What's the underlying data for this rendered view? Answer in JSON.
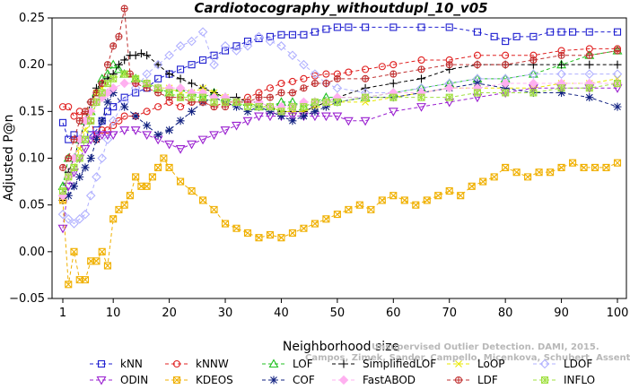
{
  "chart_data": {
    "type": "line",
    "title": "Cardiotocography_withoutdupl_10_v05",
    "xlabel": "Neighborhood size",
    "ylabel": "Adjusted P@n",
    "xlim": [
      1,
      100
    ],
    "ylim": [
      -0.05,
      0.25
    ],
    "xticks": [
      1,
      10,
      20,
      30,
      40,
      50,
      60,
      70,
      80,
      90,
      100
    ],
    "yticks": [
      -0.05,
      0.0,
      0.05,
      0.1,
      0.15,
      0.2,
      0.25
    ],
    "ytick_labels": [
      "−0.05",
      "0.00",
      "0.05",
      "0.10",
      "0.15",
      "0.20",
      "0.25"
    ],
    "grid": false,
    "legend_placement": "bottom",
    "watermark": [
      "Unsupervised Outlier Detection. DAMI, 2015.",
      "Campos, Zimek, Sander, Campello, Micenkova, Schubert, Assent, Houle"
    ],
    "series": [
      {
        "name": "kNN",
        "color": "#1f1fd0",
        "marker": "square",
        "x": [
          1,
          2,
          3,
          4,
          5,
          6,
          7,
          8,
          9,
          10,
          12,
          14,
          16,
          18,
          20,
          22,
          24,
          26,
          28,
          30,
          32,
          34,
          36,
          38,
          40,
          42,
          44,
          46,
          48,
          50,
          52,
          55,
          60,
          65,
          70,
          75,
          78,
          80,
          82,
          85,
          88,
          90,
          92,
          95,
          100
        ],
        "y": [
          0.138,
          0.12,
          0.125,
          0.12,
          0.12,
          0.125,
          0.13,
          0.14,
          0.15,
          0.155,
          0.165,
          0.17,
          0.175,
          0.185,
          0.19,
          0.195,
          0.2,
          0.205,
          0.21,
          0.215,
          0.22,
          0.225,
          0.228,
          0.23,
          0.232,
          0.232,
          0.232,
          0.235,
          0.238,
          0.24,
          0.24,
          0.24,
          0.24,
          0.24,
          0.24,
          0.235,
          0.23,
          0.225,
          0.23,
          0.23,
          0.235,
          0.235,
          0.235,
          0.235,
          0.235
        ]
      },
      {
        "name": "kNNW",
        "color": "#e02020",
        "marker": "circle",
        "x": [
          1,
          2,
          3,
          4,
          5,
          6,
          7,
          8,
          9,
          10,
          11,
          12,
          14,
          16,
          18,
          20,
          22,
          24,
          26,
          28,
          30,
          32,
          34,
          36,
          38,
          40,
          42,
          44,
          46,
          48,
          50,
          52,
          55,
          58,
          60,
          65,
          70,
          75,
          80,
          85,
          90,
          95,
          100
        ],
        "y": [
          0.155,
          0.155,
          0.145,
          0.15,
          0.145,
          0.14,
          0.12,
          0.13,
          0.13,
          0.135,
          0.14,
          0.145,
          0.145,
          0.15,
          0.155,
          0.16,
          0.155,
          0.16,
          0.16,
          0.155,
          0.16,
          0.16,
          0.165,
          0.17,
          0.175,
          0.18,
          0.182,
          0.185,
          0.188,
          0.19,
          0.19,
          0.192,
          0.195,
          0.198,
          0.2,
          0.205,
          0.205,
          0.21,
          0.21,
          0.21,
          0.215,
          0.217,
          0.217
        ]
      },
      {
        "name": "LOF",
        "color": "#20c020",
        "marker": "triangle",
        "x": [
          1,
          2,
          3,
          4,
          5,
          6,
          7,
          8,
          9,
          10,
          11,
          12,
          14,
          16,
          18,
          20,
          22,
          24,
          26,
          28,
          30,
          32,
          34,
          36,
          38,
          40,
          42,
          44,
          46,
          48,
          50,
          55,
          60,
          65,
          70,
          75,
          80,
          85,
          90,
          95,
          100
        ],
        "y": [
          0.07,
          0.1,
          0.1,
          0.12,
          0.14,
          0.15,
          0.17,
          0.185,
          0.19,
          0.2,
          0.195,
          0.19,
          0.185,
          0.18,
          0.175,
          0.17,
          0.175,
          0.17,
          0.165,
          0.17,
          0.165,
          0.16,
          0.16,
          0.155,
          0.155,
          0.16,
          0.16,
          0.155,
          0.16,
          0.165,
          0.165,
          0.165,
          0.17,
          0.175,
          0.18,
          0.185,
          0.185,
          0.19,
          0.2,
          0.21,
          0.215
        ]
      },
      {
        "name": "SimplifiedLOF",
        "color": "#000000",
        "marker": "plus",
        "x": [
          1,
          2,
          3,
          4,
          5,
          6,
          7,
          8,
          9,
          10,
          11,
          12,
          13,
          14,
          15,
          16,
          18,
          20,
          22,
          24,
          26,
          28,
          30,
          32,
          34,
          36,
          38,
          40,
          42,
          44,
          46,
          48,
          50,
          55,
          60,
          65,
          70,
          75,
          80,
          85,
          90,
          95,
          100
        ],
        "y": [
          0.055,
          0.085,
          0.1,
          0.12,
          0.14,
          0.16,
          0.175,
          0.18,
          0.185,
          0.19,
          0.2,
          0.205,
          0.21,
          0.21,
          0.212,
          0.21,
          0.2,
          0.19,
          0.185,
          0.18,
          0.175,
          0.17,
          0.165,
          0.165,
          0.16,
          0.16,
          0.155,
          0.15,
          0.15,
          0.15,
          0.155,
          0.16,
          0.165,
          0.175,
          0.18,
          0.185,
          0.195,
          0.2,
          0.2,
          0.2,
          0.2,
          0.2,
          0.2
        ]
      },
      {
        "name": "LoOP",
        "color": "#e8e800",
        "marker": "x",
        "x": [
          1,
          2,
          3,
          4,
          5,
          6,
          7,
          8,
          9,
          10,
          12,
          14,
          16,
          18,
          20,
          22,
          24,
          26,
          28,
          30,
          32,
          34,
          36,
          38,
          40,
          42,
          44,
          46,
          48,
          50,
          55,
          60,
          65,
          70,
          75,
          80,
          85,
          90,
          95,
          100
        ],
        "y": [
          0.06,
          0.08,
          0.09,
          0.11,
          0.13,
          0.15,
          0.17,
          0.175,
          0.18,
          0.185,
          0.19,
          0.185,
          0.18,
          0.175,
          0.175,
          0.17,
          0.17,
          0.175,
          0.17,
          0.165,
          0.16,
          0.16,
          0.155,
          0.155,
          0.15,
          0.15,
          0.15,
          0.155,
          0.155,
          0.16,
          0.16,
          0.165,
          0.17,
          0.175,
          0.175,
          0.175,
          0.175,
          0.18,
          0.18,
          0.185
        ]
      },
      {
        "name": "LDOF",
        "color": "#b0b0ff",
        "marker": "diamond",
        "x": [
          1,
          2,
          3,
          4,
          5,
          6,
          7,
          8,
          9,
          10,
          12,
          14,
          16,
          18,
          20,
          22,
          24,
          26,
          28,
          30,
          32,
          34,
          36,
          38,
          40,
          42,
          44,
          46,
          48,
          50,
          55,
          60,
          65,
          70,
          75,
          80,
          85,
          90,
          95,
          100
        ],
        "y": [
          0.04,
          0.035,
          0.03,
          0.035,
          0.04,
          0.06,
          0.08,
          0.1,
          0.12,
          0.14,
          0.16,
          0.175,
          0.19,
          0.2,
          0.21,
          0.22,
          0.225,
          0.235,
          0.2,
          0.22,
          0.215,
          0.22,
          0.23,
          0.225,
          0.22,
          0.21,
          0.2,
          0.19,
          0.18,
          0.175,
          0.17,
          0.17,
          0.175,
          0.18,
          0.185,
          0.185,
          0.19,
          0.19,
          0.19,
          0.19
        ]
      },
      {
        "name": "ODIN",
        "color": "#9a20d0",
        "marker": "tridown",
        "x": [
          1,
          2,
          3,
          4,
          5,
          6,
          7,
          8,
          9,
          10,
          12,
          14,
          16,
          18,
          20,
          22,
          24,
          26,
          28,
          30,
          32,
          34,
          36,
          38,
          40,
          42,
          44,
          46,
          48,
          50,
          52,
          55,
          60,
          65,
          70,
          75,
          80,
          85,
          90,
          95,
          100
        ],
        "y": [
          0.025,
          0.07,
          0.085,
          0.1,
          0.11,
          0.12,
          0.125,
          0.125,
          0.125,
          0.125,
          0.13,
          0.13,
          0.125,
          0.12,
          0.115,
          0.11,
          0.115,
          0.12,
          0.125,
          0.13,
          0.135,
          0.14,
          0.145,
          0.145,
          0.145,
          0.145,
          0.145,
          0.145,
          0.145,
          0.145,
          0.14,
          0.14,
          0.15,
          0.155,
          0.16,
          0.165,
          0.17,
          0.175,
          0.175,
          0.175,
          0.175
        ]
      },
      {
        "name": "KDEOS",
        "color": "#f0b000",
        "marker": "squarex",
        "x": [
          1,
          2,
          3,
          4,
          5,
          6,
          7,
          8,
          9,
          10,
          11,
          12,
          13,
          14,
          15,
          16,
          17,
          18,
          19,
          20,
          22,
          24,
          26,
          28,
          30,
          32,
          34,
          36,
          38,
          40,
          42,
          44,
          46,
          48,
          50,
          52,
          54,
          56,
          58,
          60,
          62,
          64,
          66,
          68,
          70,
          72,
          74,
          76,
          78,
          80,
          82,
          84,
          86,
          88,
          90,
          92,
          94,
          96,
          98,
          100
        ],
        "y": [
          0.055,
          -0.035,
          0.0,
          -0.03,
          -0.03,
          -0.01,
          -0.01,
          0.0,
          -0.015,
          0.035,
          0.045,
          0.05,
          0.06,
          0.08,
          0.07,
          0.07,
          0.08,
          0.09,
          0.1,
          0.09,
          0.075,
          0.065,
          0.055,
          0.045,
          0.03,
          0.025,
          0.02,
          0.015,
          0.018,
          0.015,
          0.02,
          0.025,
          0.03,
          0.035,
          0.04,
          0.045,
          0.05,
          0.045,
          0.055,
          0.06,
          0.055,
          0.05,
          0.055,
          0.06,
          0.065,
          0.06,
          0.07,
          0.075,
          0.08,
          0.09,
          0.085,
          0.08,
          0.085,
          0.085,
          0.09,
          0.095,
          0.09,
          0.09,
          0.09,
          0.095
        ]
      },
      {
        "name": "COF",
        "color": "#102080",
        "marker": "star",
        "x": [
          1,
          2,
          3,
          4,
          5,
          6,
          7,
          8,
          9,
          10,
          12,
          14,
          16,
          18,
          20,
          22,
          24,
          26,
          28,
          30,
          32,
          34,
          36,
          38,
          40,
          42,
          44,
          46,
          48,
          50,
          55,
          60,
          65,
          70,
          75,
          80,
          85,
          90,
          95,
          100
        ],
        "y": [
          0.06,
          0.06,
          0.07,
          0.08,
          0.09,
          0.1,
          0.12,
          0.14,
          0.16,
          0.17,
          0.155,
          0.145,
          0.135,
          0.125,
          0.13,
          0.14,
          0.15,
          0.16,
          0.165,
          0.16,
          0.155,
          0.15,
          0.155,
          0.15,
          0.145,
          0.14,
          0.145,
          0.15,
          0.155,
          0.16,
          0.165,
          0.165,
          0.17,
          0.175,
          0.18,
          0.175,
          0.17,
          0.17,
          0.165,
          0.155
        ]
      },
      {
        "name": "FastABOD",
        "color": "#ffb0f0",
        "marker": "diamondfill",
        "x": [
          1,
          2,
          3,
          4,
          5,
          6,
          7,
          8,
          9,
          10,
          12,
          14,
          16,
          18,
          20,
          22,
          24,
          26,
          28,
          30,
          32,
          34,
          36,
          38,
          40,
          42,
          44,
          46,
          48,
          50,
          55,
          60,
          65,
          70,
          75,
          80,
          85,
          90,
          95,
          100
        ],
        "y": [
          0.06,
          0.08,
          0.1,
          0.12,
          0.14,
          0.15,
          0.16,
          0.165,
          0.17,
          0.175,
          0.18,
          0.18,
          0.18,
          0.175,
          0.175,
          0.175,
          0.17,
          0.17,
          0.165,
          0.165,
          0.16,
          0.16,
          0.16,
          0.155,
          0.155,
          0.155,
          0.16,
          0.16,
          0.16,
          0.165,
          0.165,
          0.17,
          0.17,
          0.175,
          0.175,
          0.18,
          0.18,
          0.18,
          0.18,
          0.18
        ]
      },
      {
        "name": "LDF",
        "color": "#c03030",
        "marker": "circleplus",
        "x": [
          1,
          2,
          3,
          4,
          5,
          6,
          7,
          8,
          9,
          10,
          11,
          12,
          13,
          14,
          16,
          18,
          20,
          22,
          24,
          26,
          28,
          30,
          32,
          34,
          36,
          38,
          40,
          42,
          44,
          46,
          48,
          50,
          55,
          60,
          65,
          70,
          75,
          80,
          85,
          90,
          95,
          100
        ],
        "y": [
          0.09,
          0.1,
          0.12,
          0.14,
          0.15,
          0.16,
          0.17,
          0.18,
          0.2,
          0.22,
          0.23,
          0.26,
          0.19,
          0.18,
          0.175,
          0.17,
          0.165,
          0.165,
          0.16,
          0.16,
          0.155,
          0.155,
          0.16,
          0.16,
          0.165,
          0.165,
          0.17,
          0.17,
          0.175,
          0.18,
          0.18,
          0.185,
          0.185,
          0.19,
          0.195,
          0.2,
          0.2,
          0.2,
          0.205,
          0.21,
          0.21,
          0.215
        ]
      },
      {
        "name": "INFLO",
        "color": "#a0e040",
        "marker": "boxx",
        "x": [
          1,
          2,
          3,
          4,
          5,
          6,
          7,
          8,
          9,
          10,
          12,
          14,
          16,
          18,
          20,
          22,
          24,
          26,
          28,
          30,
          32,
          34,
          36,
          38,
          40,
          42,
          44,
          46,
          48,
          50,
          55,
          60,
          65,
          70,
          75,
          80,
          85,
          90,
          95,
          100
        ],
        "y": [
          0.065,
          0.08,
          0.09,
          0.1,
          0.12,
          0.14,
          0.16,
          0.17,
          0.18,
          0.185,
          0.19,
          0.185,
          0.18,
          0.175,
          0.17,
          0.165,
          0.165,
          0.165,
          0.16,
          0.16,
          0.16,
          0.155,
          0.155,
          0.155,
          0.15,
          0.155,
          0.155,
          0.16,
          0.16,
          0.16,
          0.165,
          0.165,
          0.165,
          0.165,
          0.17,
          0.17,
          0.17,
          0.175,
          0.175,
          0.18
        ]
      }
    ]
  }
}
